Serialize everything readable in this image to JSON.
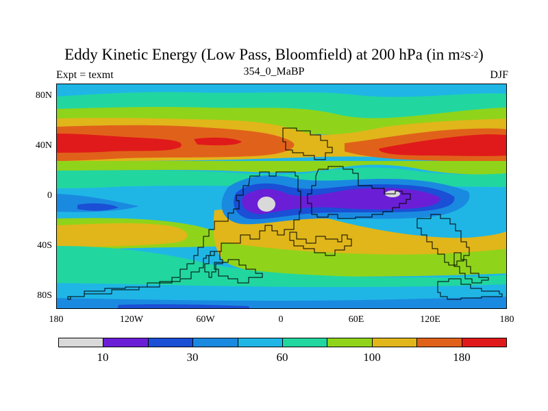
{
  "title": {
    "main": "Eddy Kinetic Energy (Low Pass, Bloomfield) at 200 hPa (in m",
    "sup1": "2",
    "mid": "s",
    "sup2": "-2",
    "end": ")"
  },
  "subtitle": {
    "left": "Expt = texmt",
    "center": "354_0_MaBP",
    "right": "DJF"
  },
  "axes": {
    "y_ticks": [
      "80N",
      "40N",
      "0",
      "40S",
      "80S"
    ],
    "x_ticks": [
      "180",
      "120W",
      "60W",
      "0",
      "60E",
      "120E",
      "180"
    ]
  },
  "colorbar": {
    "colors": [
      "#d9d9d9",
      "#6a1fd6",
      "#1a4fd6",
      "#1a8ae0",
      "#1fb6e6",
      "#22d6a0",
      "#8fd41a",
      "#e0b61a",
      "#e0621a",
      "#e01a1a"
    ],
    "labels": [
      "10",
      "30",
      "60",
      "100",
      "180"
    ]
  },
  "palette": {
    "cyan": "#1fb6e6",
    "teal": "#22d6a0",
    "green": "#8fd41a",
    "yellow": "#e0b61a",
    "orange": "#e0621a",
    "red": "#e01a1a",
    "blue": "#1a8ae0",
    "darkblue": "#1a4fd6",
    "purple": "#6a1fd6",
    "gray": "#d9d9d9"
  }
}
